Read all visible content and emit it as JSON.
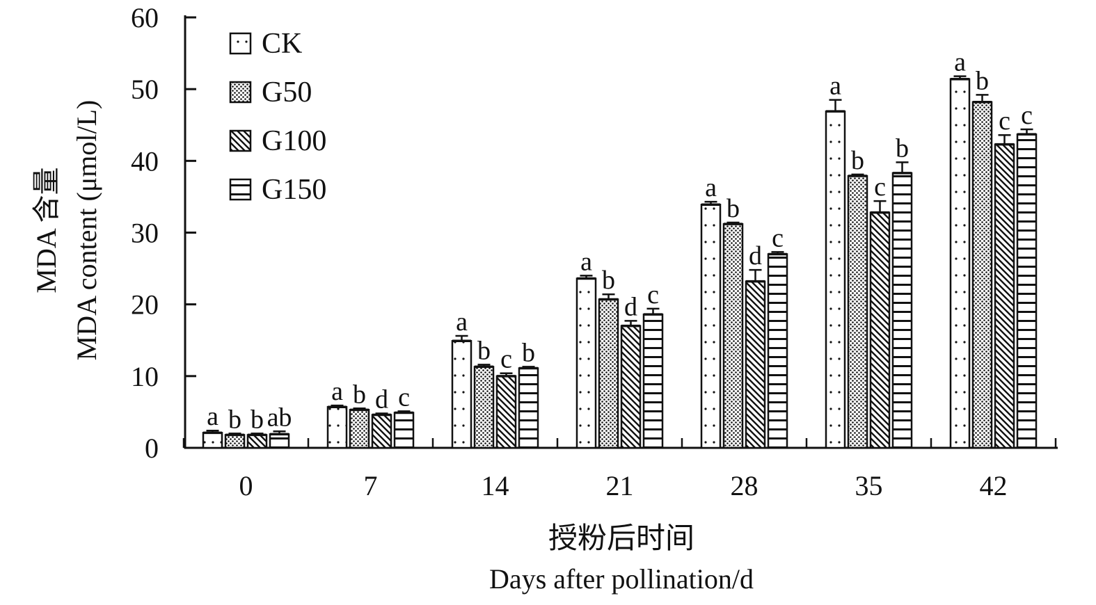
{
  "chart_data": {
    "type": "bar",
    "xlabel_cn": "授粉后时间",
    "xlabel": "Days after pollination/d",
    "ylabel_cn": "MDA 含量",
    "ylabel": "MDA content (μmol/L)",
    "ylim": [
      0,
      60
    ],
    "yticks": [
      "0",
      "10",
      "20",
      "30",
      "40",
      "50",
      "60"
    ],
    "categories": [
      "0",
      "7",
      "14",
      "21",
      "28",
      "35",
      "42"
    ],
    "legend_position": "top-left",
    "series": [
      {
        "name": "CK",
        "pattern": "dots-sparse",
        "values": [
          2.1,
          5.7,
          14.9,
          23.6,
          33.9,
          46.9,
          51.4
        ],
        "errors": [
          0.3,
          0.2,
          0.7,
          0.4,
          0.4,
          1.6,
          0.4
        ],
        "letters": [
          "a",
          "a",
          "a",
          "a",
          "a",
          "a",
          "a"
        ]
      },
      {
        "name": "G50",
        "pattern": "dots-dense",
        "values": [
          1.8,
          5.3,
          11.3,
          20.7,
          31.2,
          37.9,
          48.2
        ],
        "errors": [
          0.2,
          0.2,
          0.3,
          0.7,
          0.2,
          0.2,
          1.0
        ],
        "letters": [
          "b",
          "b",
          "b",
          "b",
          "b",
          "b",
          "b"
        ]
      },
      {
        "name": "G100",
        "pattern": "diagonal",
        "values": [
          1.8,
          4.6,
          10.0,
          17.0,
          23.2,
          32.8,
          42.3
        ],
        "errors": [
          0.2,
          0.2,
          0.4,
          0.7,
          1.6,
          1.6,
          1.3
        ],
        "letters": [
          "b",
          "d",
          "c",
          "d",
          "d",
          "c",
          "c"
        ]
      },
      {
        "name": "G150",
        "pattern": "horizontal",
        "values": [
          1.9,
          4.9,
          11.1,
          18.6,
          27.0,
          38.3,
          43.7
        ],
        "errors": [
          0.4,
          0.2,
          0.2,
          0.8,
          0.3,
          1.5,
          0.7
        ],
        "letters": [
          "ab",
          "c",
          "b",
          "c",
          "c",
          "b",
          "c"
        ]
      }
    ]
  }
}
